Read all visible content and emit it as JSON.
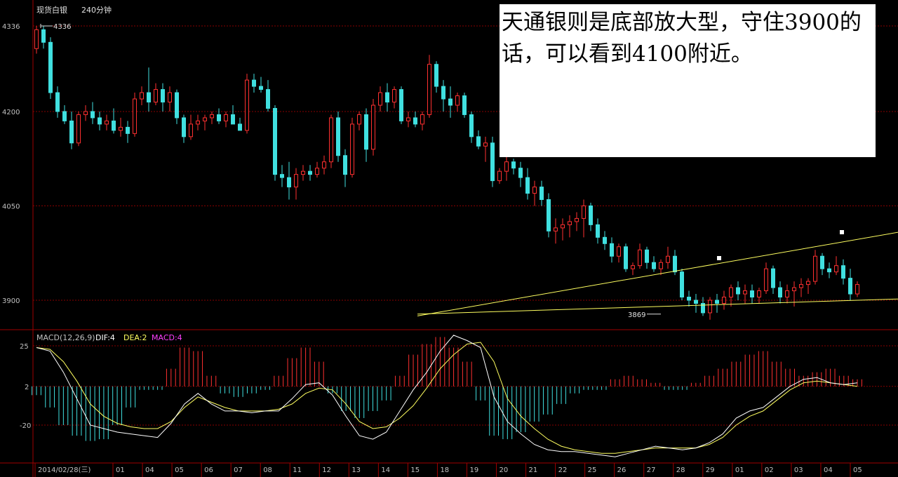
{
  "window": {
    "instrument": "现货白银",
    "period": "240分钟"
  },
  "annotation": {
    "text": "天通银则是底部放大型，守住3900的话，可以看到4100附近。"
  },
  "colors": {
    "background": "#000000",
    "axis": "#a00000",
    "grid": "#8a0000",
    "up": "#ff3030",
    "down": "#40e0e0",
    "trendline": "#ffff60",
    "axis_text": "#c0c0c0",
    "dif": "#ffffff",
    "dea": "#ffff60",
    "macd_label": "#ff40ff"
  },
  "chart_data": [
    {
      "type": "candlestick",
      "title": "现货白银 240分钟",
      "y_ticks": [
        4336,
        4200,
        4050,
        3900
      ],
      "ylim": [
        3855,
        4355
      ],
      "grid": true,
      "markers": {
        "high": {
          "value": 4336,
          "label": "4336"
        },
        "low": {
          "value": 3869,
          "label": "3869"
        }
      },
      "trendlines": [
        {
          "name": "upper",
          "from": [
            0,
            3875
          ],
          "to": [
            1,
            4008
          ]
        },
        {
          "name": "lower",
          "from": [
            0,
            3878
          ],
          "to": [
            1,
            3902
          ]
        }
      ],
      "ohlc": [
        [
          4300,
          4336,
          4292,
          4330
        ],
        [
          4330,
          4336,
          4300,
          4310
        ],
        [
          4310,
          4318,
          4220,
          4230
        ],
        [
          4230,
          4240,
          4190,
          4200
        ],
        [
          4200,
          4210,
          4180,
          4185
        ],
        [
          4185,
          4200,
          4140,
          4150
        ],
        [
          4150,
          4200,
          4145,
          4195
        ],
        [
          4195,
          4210,
          4185,
          4200
        ],
        [
          4200,
          4215,
          4180,
          4190
        ],
        [
          4190,
          4200,
          4170,
          4180
        ],
        [
          4180,
          4195,
          4170,
          4185
        ],
        [
          4185,
          4205,
          4165,
          4170
        ],
        [
          4170,
          4190,
          4160,
          4175
        ],
        [
          4175,
          4185,
          4150,
          4165
        ],
        [
          4165,
          4230,
          4160,
          4220
        ],
        [
          4220,
          4240,
          4210,
          4230
        ],
        [
          4230,
          4270,
          4200,
          4215
        ],
        [
          4215,
          4245,
          4210,
          4235
        ],
        [
          4235,
          4245,
          4200,
          4215
        ],
        [
          4215,
          4240,
          4200,
          4230
        ],
        [
          4230,
          4235,
          4180,
          4190
        ],
        [
          4190,
          4195,
          4150,
          4160
        ],
        [
          4160,
          4195,
          4155,
          4180
        ],
        [
          4180,
          4195,
          4170,
          4185
        ],
        [
          4185,
          4195,
          4170,
          4190
        ],
        [
          4190,
          4200,
          4180,
          4195
        ],
        [
          4195,
          4205,
          4180,
          4185
        ],
        [
          4185,
          4200,
          4175,
          4195
        ],
        [
          4195,
          4210,
          4185,
          4180
        ],
        [
          4180,
          4190,
          4170,
          4170
        ],
        [
          4170,
          4260,
          4165,
          4250
        ],
        [
          4250,
          4260,
          4230,
          4240
        ],
        [
          4240,
          4255,
          4230,
          4235
        ],
        [
          4235,
          4250,
          4200,
          4205
        ],
        [
          4205,
          4210,
          4090,
          4100
        ],
        [
          4100,
          4115,
          4080,
          4095
        ],
        [
          4095,
          4120,
          4060,
          4080
        ],
        [
          4080,
          4110,
          4060,
          4100
        ],
        [
          4100,
          4115,
          4090,
          4105
        ],
        [
          4105,
          4115,
          4090,
          4100
        ],
        [
          4100,
          4120,
          4095,
          4110
        ],
        [
          4110,
          4130,
          4100,
          4120
        ],
        [
          4120,
          4195,
          4110,
          4190
        ],
        [
          4190,
          4200,
          4120,
          4130
        ],
        [
          4130,
          4140,
          4080,
          4100
        ],
        [
          4100,
          4190,
          4095,
          4180
        ],
        [
          4180,
          4200,
          4170,
          4195
        ],
        [
          4195,
          4205,
          4120,
          4140
        ],
        [
          4140,
          4220,
          4130,
          4210
        ],
        [
          4210,
          4240,
          4200,
          4230
        ],
        [
          4230,
          4245,
          4200,
          4215
        ],
        [
          4215,
          4240,
          4205,
          4235
        ],
        [
          4235,
          4240,
          4180,
          4185
        ],
        [
          4185,
          4200,
          4175,
          4190
        ],
        [
          4190,
          4200,
          4175,
          4180
        ],
        [
          4180,
          4200,
          4170,
          4195
        ],
        [
          4195,
          4290,
          4190,
          4275
        ],
        [
          4275,
          4280,
          4230,
          4240
        ],
        [
          4240,
          4250,
          4200,
          4220
        ],
        [
          4220,
          4240,
          4190,
          4210
        ],
        [
          4210,
          4230,
          4200,
          4225
        ],
        [
          4225,
          4230,
          4190,
          4195
        ],
        [
          4195,
          4200,
          4150,
          4160
        ],
        [
          4160,
          4170,
          4140,
          4145
        ],
        [
          4145,
          4160,
          4120,
          4150
        ],
        [
          4150,
          4160,
          4080,
          4090
        ],
        [
          4090,
          4110,
          4085,
          4105
        ],
        [
          4105,
          4130,
          4090,
          4120
        ],
        [
          4120,
          4125,
          4100,
          4110
        ],
        [
          4110,
          4120,
          4080,
          4095
        ],
        [
          4095,
          4110,
          4060,
          4070
        ],
        [
          4070,
          4090,
          4050,
          4080
        ],
        [
          4080,
          4090,
          4050,
          4060
        ],
        [
          4060,
          4070,
          4000,
          4010
        ],
        [
          4010,
          4030,
          3990,
          4015
        ],
        [
          4015,
          4030,
          3995,
          4020
        ],
        [
          4020,
          4035,
          4000,
          4025
        ],
        [
          4025,
          4040,
          4010,
          4030
        ],
        [
          4030,
          4060,
          4000,
          4050
        ],
        [
          4050,
          4055,
          4010,
          4020
        ],
        [
          4020,
          4030,
          3990,
          4000
        ],
        [
          4000,
          4010,
          3980,
          3990
        ],
        [
          3990,
          4000,
          3960,
          3970
        ],
        [
          3970,
          3990,
          3960,
          3985
        ],
        [
          3985,
          3990,
          3945,
          3950
        ],
        [
          3950,
          3960,
          3940,
          3955
        ],
        [
          3955,
          3990,
          3950,
          3980
        ],
        [
          3980,
          3985,
          3950,
          3960
        ],
        [
          3960,
          3970,
          3945,
          3950
        ],
        [
          3950,
          3965,
          3940,
          3960
        ],
        [
          3960,
          3985,
          3950,
          3970
        ],
        [
          3970,
          3980,
          3940,
          3945
        ],
        [
          3945,
          3950,
          3900,
          3905
        ],
        [
          3905,
          3915,
          3890,
          3900
        ],
        [
          3900,
          3910,
          3880,
          3895
        ],
        [
          3895,
          3905,
          3875,
          3880
        ],
        [
          3880,
          3905,
          3869,
          3900
        ],
        [
          3900,
          3910,
          3880,
          3895
        ],
        [
          3895,
          3915,
          3885,
          3905
        ],
        [
          3905,
          3925,
          3890,
          3920
        ],
        [
          3920,
          3930,
          3900,
          3910
        ],
        [
          3910,
          3925,
          3895,
          3915
        ],
        [
          3915,
          3925,
          3895,
          3905
        ],
        [
          3905,
          3920,
          3895,
          3915
        ],
        [
          3915,
          3960,
          3910,
          3950
        ],
        [
          3950,
          3955,
          3910,
          3920
        ],
        [
          3920,
          3930,
          3895,
          3905
        ],
        [
          3905,
          3925,
          3895,
          3915
        ],
        [
          3915,
          3930,
          3890,
          3920
        ],
        [
          3920,
          3935,
          3905,
          3925
        ],
        [
          3925,
          3935,
          3910,
          3930
        ],
        [
          3930,
          3980,
          3925,
          3970
        ],
        [
          3970,
          3975,
          3940,
          3950
        ],
        [
          3950,
          3960,
          3935,
          3945
        ],
        [
          3945,
          3970,
          3940,
          3955
        ],
        [
          3955,
          3965,
          3925,
          3935
        ],
        [
          3935,
          3950,
          3900,
          3910
        ],
        [
          3910,
          3930,
          3905,
          3925
        ]
      ]
    },
    {
      "type": "macd",
      "title": "MACD(12,26,9)",
      "legend": [
        {
          "label": "DIF:4",
          "color": "#ffffff"
        },
        {
          "label": "DEA:2",
          "color": "#ffff60"
        },
        {
          "label": "MACD:4",
          "color": "#ff40ff"
        }
      ],
      "y_ticks": [
        25,
        2,
        -20
      ],
      "ylim": [
        -42,
        32
      ],
      "x_labels": [
        "2014/02/28(三)",
        "01",
        "04",
        "05",
        "06",
        "07",
        "08",
        "11",
        "12",
        "13",
        "14",
        "15",
        "18",
        "19",
        "20",
        "21",
        "22",
        "25",
        "26",
        "27",
        "28",
        "29",
        "01",
        "02",
        "03",
        "04",
        "05"
      ],
      "dif": [
        24,
        22,
        10,
        -5,
        -20,
        -22,
        -24,
        -25,
        -26,
        -27,
        -19,
        -8,
        -2,
        -8,
        -12,
        -12,
        -13,
        -12,
        -12,
        -5,
        3,
        4,
        -3,
        -15,
        -26,
        -28,
        -24,
        -12,
        0,
        10,
        22,
        31,
        28,
        24,
        -4,
        -18,
        -25,
        -31,
        -34,
        -35,
        -35,
        -36,
        -37,
        -38,
        -36,
        -34,
        -32,
        -33,
        -34,
        -33,
        -30,
        -25,
        -16,
        -12,
        -10,
        -4,
        2,
        6,
        7,
        4,
        3,
        4
      ],
      "dea": [
        24,
        23,
        16,
        5,
        -8,
        -15,
        -19,
        -21,
        -22,
        -22,
        -18,
        -10,
        -4,
        -7,
        -10,
        -12,
        -12,
        -12,
        -11,
        -8,
        -2,
        1,
        0,
        -8,
        -18,
        -22,
        -21,
        -16,
        -9,
        1,
        12,
        20,
        26,
        27,
        16,
        -5,
        -15,
        -22,
        -28,
        -32,
        -34,
        -35,
        -36,
        -36,
        -35,
        -34,
        -33,
        -33,
        -33,
        -33,
        -31,
        -27,
        -20,
        -15,
        -12,
        -6,
        0,
        4,
        5,
        4,
        3,
        2
      ],
      "macd": [
        -5,
        -12,
        -22,
        -28,
        -31,
        -30,
        -22,
        -12,
        -2,
        -2,
        10,
        22,
        20,
        6,
        -4,
        -6,
        -4,
        -2,
        6,
        16,
        22,
        14,
        -4,
        -14,
        -18,
        -14,
        -8,
        6,
        18,
        24,
        28,
        22,
        14,
        -8,
        -28,
        -30,
        -26,
        -20,
        -16,
        -10,
        -4,
        -2,
        -2,
        4,
        6,
        4,
        2,
        -2,
        -2,
        2,
        6,
        10,
        14,
        18,
        20,
        14,
        10,
        6,
        8,
        10,
        6,
        4
      ]
    }
  ]
}
